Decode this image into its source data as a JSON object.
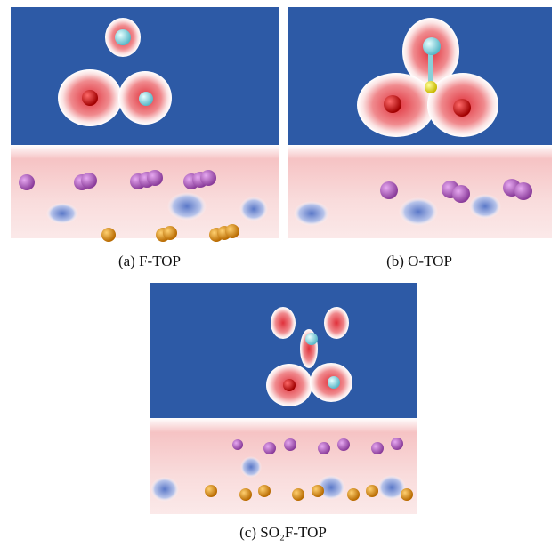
{
  "panels": [
    {
      "caption": "(a) F-TOP"
    },
    {
      "caption": "(b) O-TOP"
    },
    {
      "caption": "(c) SO₂F-TOP"
    }
  ]
}
